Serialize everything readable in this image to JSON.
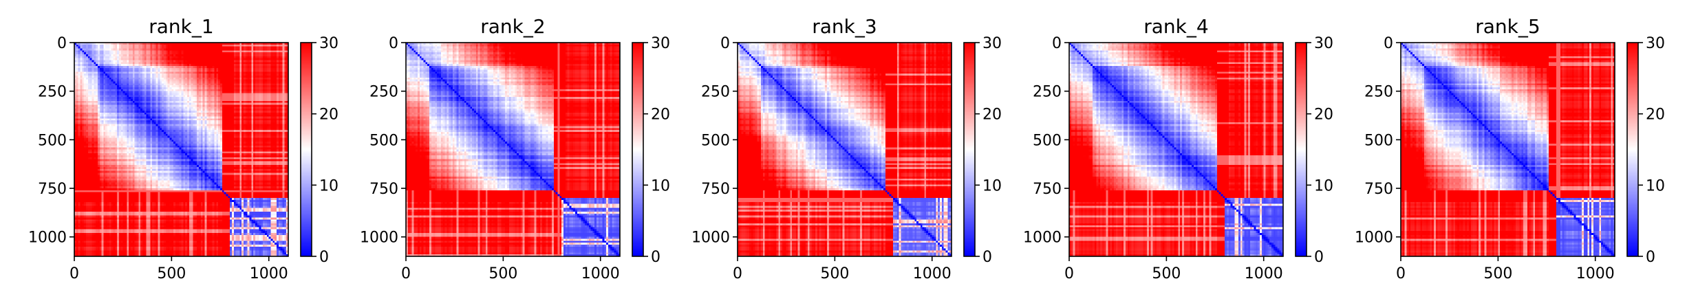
{
  "chart_data": [
    {
      "type": "heatmap",
      "title": "rank_1",
      "xlabel": "",
      "ylabel": "",
      "matrix_size": 1100,
      "xlim": [
        0,
        1100
      ],
      "ylim": [
        1100,
        0
      ],
      "x_ticks": [
        0,
        500,
        1000
      ],
      "y_ticks": [
        0,
        250,
        500,
        750,
        1000
      ],
      "x_tick_labels": [
        "0",
        "500",
        "1000"
      ],
      "y_tick_labels": [
        "0",
        "250",
        "500",
        "750",
        "1000"
      ],
      "colorbar": {
        "min": 0,
        "max": 30,
        "ticks": [
          0,
          10,
          20,
          30
        ],
        "tick_labels": [
          "0",
          "10",
          "20",
          "30"
        ],
        "colormap": "bwr"
      },
      "blocks": {
        "boundary_1": 760,
        "boundary_2": 790,
        "within_block_value": 2,
        "cross_block_value": 30,
        "far_off_diagonal_value": 28
      }
    },
    {
      "type": "heatmap",
      "title": "rank_2",
      "xlabel": "",
      "ylabel": "",
      "matrix_size": 1100,
      "xlim": [
        0,
        1100
      ],
      "ylim": [
        1100,
        0
      ],
      "x_ticks": [
        0,
        500,
        1000
      ],
      "y_ticks": [
        0,
        250,
        500,
        750,
        1000
      ],
      "x_tick_labels": [
        "0",
        "500",
        "1000"
      ],
      "y_tick_labels": [
        "0",
        "250",
        "500",
        "750",
        "1000"
      ],
      "colorbar": {
        "min": 0,
        "max": 30,
        "ticks": [
          0,
          10,
          20,
          30
        ],
        "tick_labels": [
          "0",
          "10",
          "20",
          "30"
        ],
        "colormap": "bwr"
      },
      "blocks": {
        "boundary_1": 760,
        "boundary_2": 790,
        "within_block_value": 2,
        "cross_block_value": 30,
        "far_off_diagonal_value": 27
      }
    },
    {
      "type": "heatmap",
      "title": "rank_3",
      "xlabel": "",
      "ylabel": "",
      "matrix_size": 1100,
      "xlim": [
        0,
        1100
      ],
      "ylim": [
        1100,
        0
      ],
      "x_ticks": [
        0,
        500,
        1000
      ],
      "y_ticks": [
        0,
        250,
        500,
        750,
        1000
      ],
      "x_tick_labels": [
        "0",
        "500",
        "1000"
      ],
      "y_tick_labels": [
        "0",
        "250",
        "500",
        "750",
        "1000"
      ],
      "colorbar": {
        "min": 0,
        "max": 30,
        "ticks": [
          0,
          10,
          20,
          30
        ],
        "tick_labels": [
          "0",
          "10",
          "20",
          "30"
        ],
        "colormap": "bwr"
      },
      "blocks": {
        "boundary_1": 760,
        "boundary_2": 790,
        "within_block_value": 3,
        "cross_block_value": 30,
        "far_off_diagonal_value": 30
      }
    },
    {
      "type": "heatmap",
      "title": "rank_4",
      "xlabel": "",
      "ylabel": "",
      "matrix_size": 1100,
      "xlim": [
        0,
        1100
      ],
      "ylim": [
        1100,
        0
      ],
      "x_ticks": [
        0,
        500,
        1000
      ],
      "y_ticks": [
        0,
        250,
        500,
        750,
        1000
      ],
      "x_tick_labels": [
        "0",
        "500",
        "1000"
      ],
      "y_tick_labels": [
        "0",
        "250",
        "500",
        "750",
        "1000"
      ],
      "colorbar": {
        "min": 0,
        "max": 30,
        "ticks": [
          0,
          10,
          20,
          30
        ],
        "tick_labels": [
          "0",
          "10",
          "20",
          "30"
        ],
        "colormap": "bwr"
      },
      "blocks": {
        "boundary_1": 760,
        "boundary_2": 790,
        "within_block_value": 2,
        "cross_block_value": 30,
        "far_off_diagonal_value": 28
      }
    },
    {
      "type": "heatmap",
      "title": "rank_5",
      "xlabel": "",
      "ylabel": "",
      "matrix_size": 1100,
      "xlim": [
        0,
        1100
      ],
      "ylim": [
        1100,
        0
      ],
      "x_ticks": [
        0,
        500,
        1000
      ],
      "y_ticks": [
        0,
        250,
        500,
        750,
        1000
      ],
      "x_tick_labels": [
        "0",
        "500",
        "1000"
      ],
      "y_tick_labels": [
        "0",
        "250",
        "500",
        "750",
        "1000"
      ],
      "colorbar": {
        "min": 0,
        "max": 30,
        "ticks": [
          0,
          10,
          20,
          30
        ],
        "tick_labels": [
          "0",
          "10",
          "20",
          "30"
        ],
        "colormap": "bwr"
      },
      "blocks": {
        "boundary_1": 760,
        "boundary_2": 790,
        "within_block_value": 2,
        "cross_block_value": 30,
        "far_off_diagonal_value": 28
      }
    }
  ]
}
